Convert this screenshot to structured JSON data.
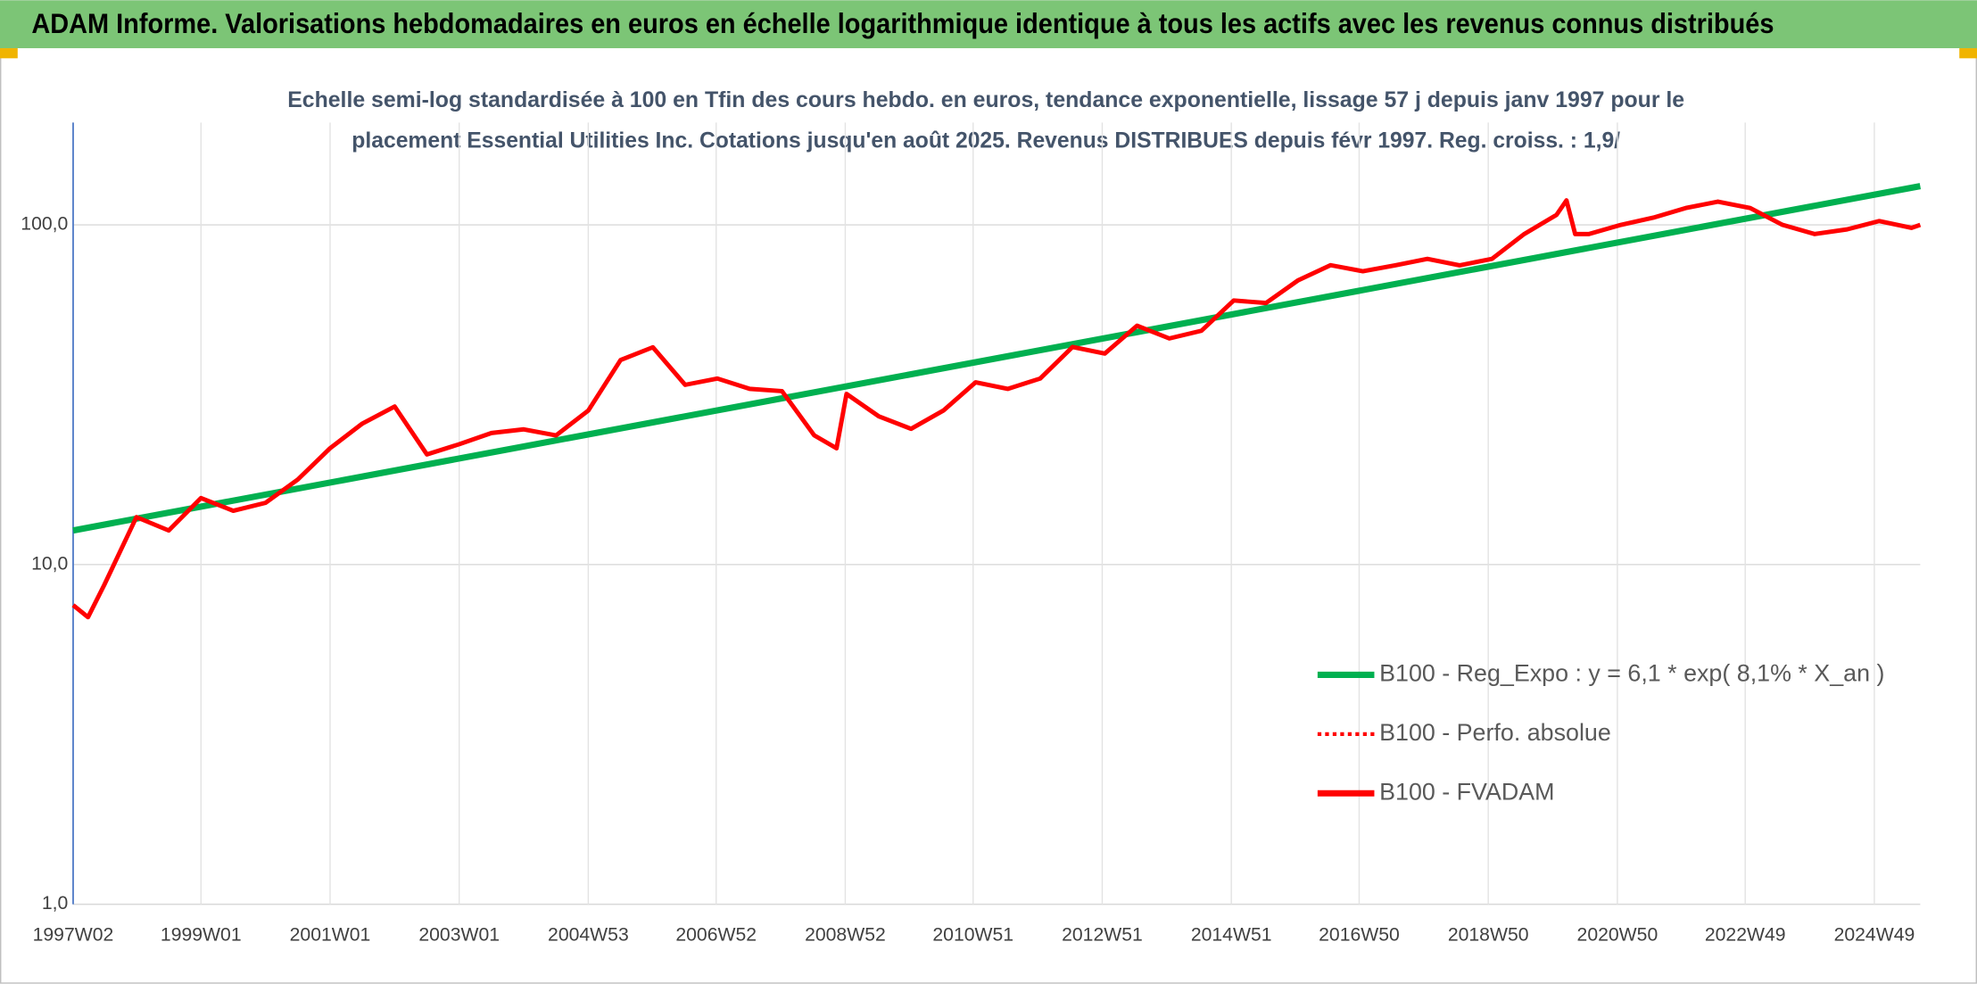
{
  "header": {
    "title": "ADAM Informe. Valorisations hebdomadaires en euros en échelle logarithmique identique à tous les actifs avec les revenus connus distribués"
  },
  "chart_data": {
    "type": "line",
    "title_lines": [
      "Echelle semi-log standardisée à 100 en Tfin des cours hebdo. en euros, tendance exponentielle, lissage 57 j depuis janv 1997 pour le",
      "placement Essential Utilities Inc. Cotations jusqu'en août 2025. Revenus DISTRIBUES depuis févr 1997. Reg. croiss. : 1,9/"
    ],
    "log_scale": true,
    "grid": true,
    "legend_position": "right",
    "ylim": [
      1,
      200
    ],
    "yticks": [
      {
        "value": 1,
        "label": "1,0"
      },
      {
        "value": 10,
        "label": "10,0"
      },
      {
        "value": 100,
        "label": "100,0"
      }
    ],
    "xlim": [
      "1997W02",
      "2025W34"
    ],
    "xticks": [
      "1997W02",
      "1999W01",
      "2001W01",
      "2003W01",
      "2004W53",
      "2006W52",
      "2008W52",
      "2010W51",
      "2012W51",
      "2014W51",
      "2016W50",
      "2018W50",
      "2020W50",
      "2022W49",
      "2024W49"
    ],
    "series": [
      {
        "name": "B100 - Reg_Expo : y = 6,1 * exp( 8,1% *  X_an )",
        "color": "#00b050",
        "style": "solid",
        "x": [
          "1997W02",
          "2025W34"
        ],
        "values": [
          12.6,
          130
        ]
      },
      {
        "name": "B100 - Perfo. absolue",
        "color": "#ff0000",
        "style": "dotted",
        "x": [],
        "values": []
      },
      {
        "name": "B100 - FVADAM",
        "color": "#ff0000",
        "style": "solid",
        "x": [
          "1997W02",
          "1997W14",
          "1997W27",
          "1998W01",
          "1998W27",
          "1999W01",
          "1999W27",
          "2000W01",
          "2000W27",
          "2001W01",
          "2001W27",
          "2002W01",
          "2002W27",
          "2003W01",
          "2003W27",
          "2004W01",
          "2004W27",
          "2005W01",
          "2005W27",
          "2006W01",
          "2006W27",
          "2007W01",
          "2007W27",
          "2008W01",
          "2008W27",
          "2008W45",
          "2009W01",
          "2009W27",
          "2010W01",
          "2010W27",
          "2011W01",
          "2011W27",
          "2012W01",
          "2012W27",
          "2013W01",
          "2013W27",
          "2014W01",
          "2014W27",
          "2015W01",
          "2015W27",
          "2016W01",
          "2016W27",
          "2017W01",
          "2017W27",
          "2018W01",
          "2018W27",
          "2019W01",
          "2019W27",
          "2020W01",
          "2020W09",
          "2020W16",
          "2020W27",
          "2021W01",
          "2021W27",
          "2022W01",
          "2022W27",
          "2023W01",
          "2023W27",
          "2024W01",
          "2024W27",
          "2025W01",
          "2025W27",
          "2025W34"
        ],
        "values": [
          7.6,
          7.0,
          8.7,
          13.8,
          12.6,
          15.7,
          14.4,
          15.2,
          17.8,
          22,
          26,
          29.2,
          21.1,
          22.6,
          24.4,
          25,
          24,
          28.4,
          40,
          43.6,
          33.8,
          35.3,
          32.9,
          32.4,
          24,
          22,
          31.8,
          27.3,
          25.1,
          28.4,
          34.4,
          32.9,
          35.3,
          43.7,
          41.8,
          50.5,
          46.3,
          48.8,
          59.9,
          58.9,
          68.7,
          76.1,
          73,
          76,
          79.4,
          76,
          79.4,
          94,
          107,
          118,
          94,
          94,
          100,
          105,
          112,
          117,
          112,
          100,
          94,
          97,
          102.6,
          98,
          100
        ]
      }
    ]
  }
}
